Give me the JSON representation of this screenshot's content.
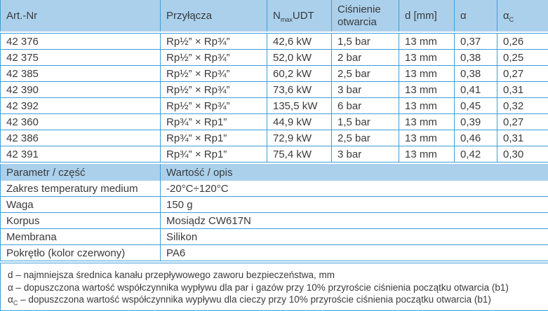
{
  "colors": {
    "border_blue": "#3f9dd8",
    "header_background": "#abd0ec",
    "text": "#3a3a3a",
    "row_background": "#ffffff"
  },
  "spec_table": {
    "headers": {
      "art_nr": "Art.-Nr",
      "przylacza": "Przyłącza",
      "n_pre": "N",
      "n_sub": "max",
      "n_post": "UDT",
      "cisnienie_otwarcia": "Ciśnienie otwarcia",
      "d_mm": "d [mm]",
      "alpha": "α",
      "alpha_c_pre": "α",
      "alpha_c_sub": "C"
    },
    "rows": [
      [
        "42 376",
        "Rp½” × Rp¾”",
        "42,6 kW",
        "1,5 bar",
        "13 mm",
        "0,37",
        "0,26"
      ],
      [
        "42 375",
        "Rp½” × Rp¾”",
        "52,0 kW",
        "2 bar",
        "13 mm",
        "0,38",
        "0,25"
      ],
      [
        "42 385",
        "Rp½” × Rp¾”",
        "60,2 kW",
        "2,5 bar",
        "13 mm",
        "0,38",
        "0,27"
      ],
      [
        "42 390",
        "Rp½” × Rp¾”",
        "73,6 kW",
        "3 bar",
        "13 mm",
        "0,41",
        "0,31"
      ],
      [
        "42 392",
        "Rp½” × Rp¾”",
        "135,5 kW",
        "6 bar",
        "13 mm",
        "0,45",
        "0,32"
      ],
      [
        "42 360",
        "Rp¾” × Rp1”",
        "44,9 kW",
        "1,5 bar",
        "13 mm",
        "0,39",
        "0,27"
      ],
      [
        "42 386",
        "Rp¾” × Rp1”",
        "72,9 kW",
        "2,5 bar",
        "13 mm",
        "0,46",
        "0,31"
      ],
      [
        "42 391",
        "Rp¾” × Rp1”",
        "75,4 kW",
        "3 bar",
        "13 mm",
        "0,42",
        "0,30"
      ]
    ]
  },
  "param_table": {
    "headers": {
      "parametr": "Parametr / część",
      "wartosc": "Wartość / opis"
    },
    "rows": [
      [
        "Zakres temperatury medium",
        "-20°C÷120°C"
      ],
      [
        "Waga",
        "150 g"
      ],
      [
        "Korpus",
        "Mosiądz CW617N"
      ],
      [
        "Membrana",
        "Silikon"
      ],
      [
        "Pokrętło (kolor czerwony)",
        "PA6"
      ]
    ]
  },
  "footnotes": {
    "line1": "d – najmniejsza średnica kanału przepływowego zaworu bezpieczeństwa, mm",
    "line2": "α – dopuszczona wartość współczynnika wypływu dla par i gazów przy 10% przyroście ciśnienia początku otwarcia (b1)",
    "line3_pre": "α",
    "line3_sub": "C",
    "line3_rest": " – dopuszczona wartość współczynnika wypływu dla cieczy przy 10% przyroście ciśnienia początku otwarcia (b1)"
  }
}
